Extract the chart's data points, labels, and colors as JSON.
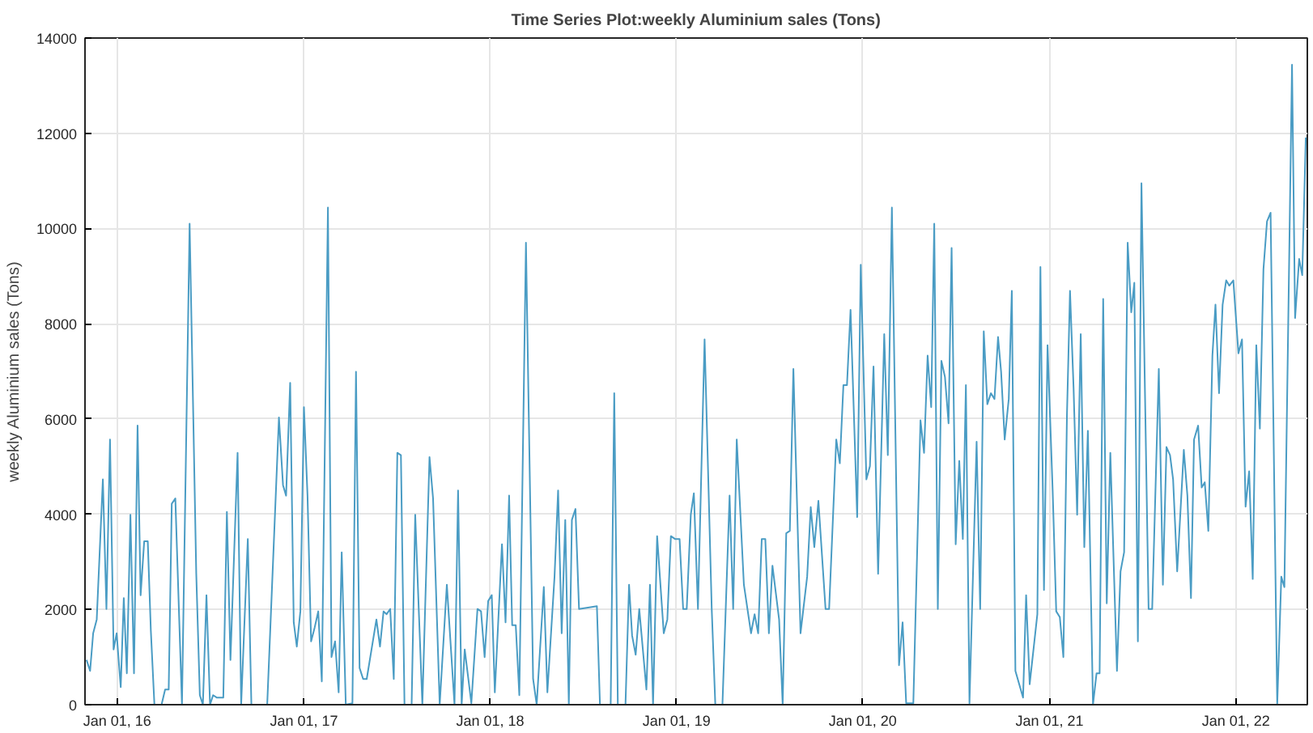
{
  "chart_data": {
    "type": "line",
    "title": "Time Series Plot:weekly Aluminium sales (Tons)",
    "ylabel": "weekly Aluminium sales (Tons)",
    "xlim": [
      "2015-10-30",
      "2022-05-21"
    ],
    "ylim": [
      0,
      14000
    ],
    "xticks": [
      {
        "value": "2016-01-01",
        "label": "Jan 01, 16"
      },
      {
        "value": "2017-01-01",
        "label": "Jan 01, 17"
      },
      {
        "value": "2018-01-01",
        "label": "Jan 01, 18"
      },
      {
        "value": "2019-01-01",
        "label": "Jan 01, 19"
      },
      {
        "value": "2020-01-01",
        "label": "Jan 01, 20"
      },
      {
        "value": "2021-01-01",
        "label": "Jan 01, 21"
      },
      {
        "value": "2022-01-01",
        "label": "Jan 01, 22"
      }
    ],
    "yticks": [
      0,
      2000,
      4000,
      6000,
      8000,
      10000,
      12000,
      14000
    ],
    "grid": true,
    "line_style": "solid",
    "marker": "none",
    "series": [
      {
        "color": "#4a9cc4",
        "x": [
          "2015-11-02",
          "2015-11-09",
          "2015-11-15",
          "2015-11-22",
          "2015-12-04",
          "2015-12-11",
          "2015-12-18",
          "2015-12-25",
          "2015-12-31",
          "2016-01-08",
          "2016-01-14",
          "2016-01-20",
          "2016-01-27",
          "2016-02-03",
          "2016-02-10",
          "2016-02-16",
          "2016-02-23",
          "2016-03-01",
          "2016-03-07",
          "2016-03-14",
          "2016-03-28",
          "2016-04-04",
          "2016-04-11",
          "2016-04-17",
          "2016-04-24",
          "2016-05-07",
          "2016-05-22",
          "2016-06-04",
          "2016-06-11",
          "2016-06-17",
          "2016-06-24",
          "2016-07-01",
          "2016-07-07",
          "2016-07-14",
          "2016-07-27",
          "2016-08-03",
          "2016-08-10",
          "2016-08-24",
          "2016-08-31",
          "2016-09-13",
          "2016-09-20",
          "2016-10-21",
          "2016-11-13",
          "2016-11-21",
          "2016-11-27",
          "2016-12-05",
          "2016-12-12",
          "2016-12-18",
          "2016-12-25",
          "2017-01-01",
          "2017-01-08",
          "2017-01-15",
          "2017-01-22",
          "2017-01-29",
          "2017-02-05",
          "2017-02-17",
          "2017-02-24",
          "2017-03-03",
          "2017-03-10",
          "2017-03-16",
          "2017-03-24",
          "2017-04-06",
          "2017-04-13",
          "2017-04-20",
          "2017-04-27",
          "2017-05-04",
          "2017-05-23",
          "2017-05-30",
          "2017-06-06",
          "2017-06-12",
          "2017-06-19",
          "2017-06-26",
          "2017-07-03",
          "2017-07-10",
          "2017-07-17",
          "2017-07-31",
          "2017-08-07",
          "2017-08-21",
          "2017-09-04",
          "2017-09-11",
          "2017-09-24",
          "2017-10-08",
          "2017-10-23",
          "2017-10-30",
          "2017-11-06",
          "2017-11-12",
          "2017-11-25",
          "2017-12-07",
          "2017-12-14",
          "2017-12-21",
          "2017-12-28",
          "2018-01-04",
          "2018-01-10",
          "2018-01-24",
          "2018-01-31",
          "2018-02-07",
          "2018-02-13",
          "2018-02-20",
          "2018-02-27",
          "2018-03-12",
          "2018-03-26",
          "2018-04-02",
          "2018-04-16",
          "2018-04-23",
          "2018-05-07",
          "2018-05-14",
          "2018-05-21",
          "2018-05-28",
          "2018-06-04",
          "2018-06-10",
          "2018-06-17",
          "2018-06-24",
          "2018-07-29",
          "2018-08-04",
          "2018-08-25",
          "2018-09-01",
          "2018-09-08",
          "2018-09-23",
          "2018-09-30",
          "2018-10-06",
          "2018-10-13",
          "2018-10-20",
          "2018-11-03",
          "2018-11-10",
          "2018-11-16",
          "2018-11-24",
          "2018-12-07",
          "2018-12-14",
          "2018-12-21",
          "2018-12-29",
          "2019-01-07",
          "2019-01-14",
          "2019-01-21",
          "2019-01-29",
          "2019-02-04",
          "2019-02-12",
          "2019-02-25",
          "2019-03-11",
          "2019-03-18",
          "2019-04-01",
          "2019-04-15",
          "2019-04-22",
          "2019-04-29",
          "2019-05-13",
          "2019-05-27",
          "2019-06-03",
          "2019-06-10",
          "2019-06-17",
          "2019-06-24",
          "2019-07-01",
          "2019-07-08",
          "2019-07-21",
          "2019-07-28",
          "2019-08-04",
          "2019-08-11",
          "2019-08-18",
          "2019-09-01",
          "2019-09-14",
          "2019-09-21",
          "2019-09-28",
          "2019-10-06",
          "2019-10-20",
          "2019-10-27",
          "2019-11-10",
          "2019-11-17",
          "2019-11-24",
          "2019-12-01",
          "2019-12-08",
          "2019-12-21",
          "2019-12-28",
          "2020-01-08",
          "2020-01-15",
          "2020-01-22",
          "2020-01-31",
          "2020-02-12",
          "2020-02-19",
          "2020-02-27",
          "2020-03-12",
          "2020-03-19",
          "2020-03-26",
          "2020-04-09",
          "2020-04-23",
          "2020-04-30",
          "2020-05-07",
          "2020-05-14",
          "2020-05-20",
          "2020-05-27",
          "2020-06-03",
          "2020-06-10",
          "2020-06-17",
          "2020-06-23",
          "2020-07-01",
          "2020-07-08",
          "2020-07-15",
          "2020-07-21",
          "2020-07-28",
          "2020-08-11",
          "2020-08-18",
          "2020-08-25",
          "2020-09-01",
          "2020-09-08",
          "2020-09-15",
          "2020-09-22",
          "2020-09-28",
          "2020-10-05",
          "2020-10-13",
          "2020-10-19",
          "2020-10-26",
          "2020-11-10",
          "2020-11-16",
          "2020-11-23",
          "2020-12-08",
          "2020-12-14",
          "2020-12-21",
          "2020-12-28",
          "2021-01-07",
          "2021-01-14",
          "2021-01-21",
          "2021-01-28",
          "2021-02-04",
          "2021-02-10",
          "2021-02-17",
          "2021-02-24",
          "2021-03-03",
          "2021-03-10",
          "2021-03-17",
          "2021-03-27",
          "2021-04-03",
          "2021-04-09",
          "2021-04-16",
          "2021-04-23",
          "2021-04-30",
          "2021-05-13",
          "2021-05-20",
          "2021-05-27",
          "2021-06-03",
          "2021-06-10",
          "2021-06-16",
          "2021-06-23",
          "2021-06-30",
          "2021-07-14",
          "2021-07-21",
          "2021-08-03",
          "2021-08-11",
          "2021-08-18",
          "2021-08-25",
          "2021-08-31",
          "2021-09-08",
          "2021-09-21",
          "2021-09-28",
          "2021-10-05",
          "2021-10-11",
          "2021-10-19",
          "2021-10-26",
          "2021-11-01",
          "2021-11-08",
          "2021-11-16",
          "2021-11-22",
          "2021-11-29",
          "2021-12-06",
          "2021-12-13",
          "2021-12-19",
          "2021-12-27",
          "2022-01-06",
          "2022-01-13",
          "2022-01-20",
          "2022-01-27",
          "2022-02-03",
          "2022-02-10",
          "2022-02-17",
          "2022-02-24",
          "2022-03-03",
          "2022-03-10",
          "2022-03-23",
          "2022-03-31",
          "2022-04-06",
          "2022-04-21",
          "2022-04-27",
          "2022-05-05",
          "2022-05-11",
          "2022-05-18"
        ],
        "values": [
          940,
          710,
          1500,
          1790,
          4730,
          2010,
          5570,
          1160,
          1500,
          370,
          2240,
          660,
          3990,
          660,
          5860,
          2300,
          3430,
          3430,
          1560,
          0,
          0,
          320,
          320,
          4220,
          4330,
          0,
          10100,
          2750,
          200,
          0,
          2300,
          0,
          200,
          150,
          150,
          4050,
          940,
          5290,
          0,
          3480,
          0,
          0,
          6030,
          4610,
          4390,
          6760,
          1730,
          1220,
          1960,
          6250,
          4390,
          1330,
          1620,
          1960,
          490,
          10440,
          1000,
          1330,
          260,
          3200,
          0,
          30,
          6990,
          770,
          540,
          540,
          1790,
          1220,
          1960,
          1900,
          2010,
          540,
          5290,
          5240,
          0,
          0,
          3990,
          0,
          5200,
          4330,
          0,
          2520,
          0,
          4500,
          0,
          1160,
          30,
          2010,
          1960,
          1000,
          2180,
          2300,
          260,
          3370,
          1730,
          4390,
          1670,
          1670,
          200,
          9700,
          540,
          0,
          2470,
          260,
          2690,
          4500,
          1500,
          3880,
          0,
          3880,
          4110,
          2010,
          2070,
          0,
          0,
          6540,
          0,
          0,
          2520,
          1450,
          1050,
          2010,
          320,
          2520,
          0,
          3540,
          1500,
          1790,
          3540,
          3480,
          3480,
          2010,
          2010,
          3990,
          4440,
          2010,
          7670,
          2010,
          0,
          0,
          4390,
          2010,
          5570,
          2520,
          1500,
          1900,
          1500,
          3480,
          3480,
          1500,
          2920,
          1790,
          0,
          3600,
          3650,
          7050,
          1500,
          2690,
          4150,
          3310,
          4280,
          2010,
          2010,
          5570,
          5070,
          6710,
          6710,
          8290,
          3940,
          9240,
          4730,
          5010,
          7100,
          2750,
          7780,
          5240,
          10440,
          830,
          1730,
          30,
          30,
          5970,
          5290,
          7330,
          6250,
          10100,
          2010,
          7220,
          6880,
          5910,
          9590,
          3370,
          5120,
          3480,
          6710,
          30,
          5520,
          2010,
          7840,
          6310,
          6540,
          6420,
          7720,
          6990,
          5570,
          6420,
          8690,
          710,
          150,
          2300,
          430,
          1900,
          9190,
          2410,
          7550,
          4500,
          1960,
          1840,
          1000,
          6080,
          8690,
          6650,
          3990,
          7780,
          3310,
          5750,
          0,
          660,
          660,
          8520,
          2130,
          5290,
          710,
          2800,
          3200,
          9700,
          8240,
          8860,
          1330,
          10950,
          2010,
          2010,
          7050,
          2520,
          5410,
          5240,
          4730,
          2800,
          5350,
          4390,
          2240,
          5570,
          5860,
          4560,
          4670,
          3650,
          7330,
          8400,
          6540,
          8400,
          8910,
          8800,
          8910,
          7380,
          7670,
          4160,
          4900,
          2640,
          7550,
          5800,
          9140,
          10150,
          10330,
          0,
          2690,
          2470,
          13440,
          8120,
          9360,
          9020,
          11910
        ]
      }
    ]
  }
}
